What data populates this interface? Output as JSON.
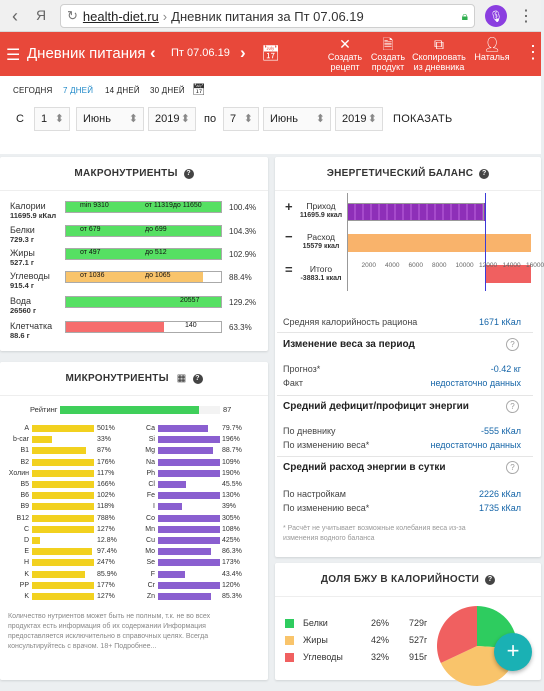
{
  "browser": {
    "back": "‹",
    "y": "Я",
    "domain": "health-diet.ru",
    "page_title": "Дневник питания за Пт 07.06.19"
  },
  "header": {
    "title": "Дневник питания",
    "date": "Пт 07.06.19",
    "actions": [
      {
        "label1": "Создать",
        "label2": "рецепт"
      },
      {
        "label1": "Создать",
        "label2": "продукт"
      },
      {
        "label1": "Скопировать",
        "label2": "из дневника"
      },
      {
        "label1": "Наталья",
        "label2": ""
      }
    ]
  },
  "filters": {
    "tabs": [
      "СЕГОДНЯ",
      "7 ДНЕЙ",
      "14 ДНЕЙ",
      "30 ДНЕЙ"
    ],
    "from_label": "С",
    "to_label": "по",
    "from_day": "1",
    "from_month": "Июнь",
    "from_year": "2019",
    "to_day": "7",
    "to_month": "Июнь",
    "to_year": "2019",
    "show_label": "ПОКАЗАТЬ"
  },
  "macro": {
    "title": "МАКРОНУТРИЕНТЫ",
    "rows": [
      {
        "name": "Калории",
        "amount": "11695.9 кКал",
        "pct": "100.4%",
        "t1": "min 9310",
        "t2": "от 11319до 11650",
        "fill": 1.0,
        "color": "#56e063"
      },
      {
        "name": "Белки",
        "amount": "729.3 г",
        "pct": "104.3%",
        "t1": "от 679",
        "t2": "до 699",
        "fill": 1.0,
        "color": "#56e063"
      },
      {
        "name": "Жиры",
        "amount": "527.1 г",
        "pct": "102.9%",
        "t1": "от 497",
        "t2": "до 512",
        "fill": 1.0,
        "color": "#56e063"
      },
      {
        "name": "Углеводы",
        "amount": "915.4 г",
        "pct": "88.4%",
        "t1": "от 1036",
        "t2": "до 1065",
        "fill": 0.88,
        "color": "#f9c46b"
      },
      {
        "name": "Вода",
        "amount": "26560 г",
        "pct": "129.2%",
        "t1": "",
        "t2": "20557",
        "fill": 1.0,
        "color": "#56e063"
      },
      {
        "name": "Клетчатка",
        "amount": "88.6 г",
        "pct": "63.3%",
        "t1": "",
        "t2": "140",
        "fill": 0.63,
        "color": "#f66d6d"
      }
    ]
  },
  "micro": {
    "title": "МИКРОНУТРИЕНТЫ",
    "rating_label": "Рейтинг",
    "rating_value": "87",
    "rating_fill": 0.87,
    "left": [
      {
        "n": "A",
        "v": "501%",
        "f": 1.0
      },
      {
        "n": "b-car",
        "v": "33%",
        "f": 0.33
      },
      {
        "n": "B1",
        "v": "87%",
        "f": 0.87
      },
      {
        "n": "B2",
        "v": "176%",
        "f": 1.0
      },
      {
        "n": "Холин",
        "v": "117%",
        "f": 1.0
      },
      {
        "n": "B5",
        "v": "166%",
        "f": 1.0
      },
      {
        "n": "B6",
        "v": "102%",
        "f": 1.0
      },
      {
        "n": "B9",
        "v": "118%",
        "f": 1.0
      },
      {
        "n": "B12",
        "v": "788%",
        "f": 1.0
      },
      {
        "n": "C",
        "v": "127%",
        "f": 1.0
      },
      {
        "n": "D",
        "v": "12.8%",
        "f": 0.13
      },
      {
        "n": "E",
        "v": "97.4%",
        "f": 0.97
      },
      {
        "n": "H",
        "v": "247%",
        "f": 1.0
      },
      {
        "n": "K",
        "v": "85.9%",
        "f": 0.86
      },
      {
        "n": "PP",
        "v": "177%",
        "f": 1.0
      },
      {
        "n": "K",
        "v": "127%",
        "f": 1.0
      }
    ],
    "right": [
      {
        "n": "Ca",
        "v": "79.7%",
        "f": 0.8
      },
      {
        "n": "Si",
        "v": "196%",
        "f": 1.0
      },
      {
        "n": "Mg",
        "v": "88.7%",
        "f": 0.89
      },
      {
        "n": "Na",
        "v": "109%",
        "f": 1.0
      },
      {
        "n": "Ph",
        "v": "190%",
        "f": 1.0
      },
      {
        "n": "Cl",
        "v": "45.5%",
        "f": 0.45
      },
      {
        "n": "Fe",
        "v": "130%",
        "f": 1.0
      },
      {
        "n": "I",
        "v": "39%",
        "f": 0.39
      },
      {
        "n": "Co",
        "v": "305%",
        "f": 1.0
      },
      {
        "n": "Mn",
        "v": "108%",
        "f": 1.0
      },
      {
        "n": "Cu",
        "v": "425%",
        "f": 1.0
      },
      {
        "n": "Mo",
        "v": "86.3%",
        "f": 0.86
      },
      {
        "n": "Se",
        "v": "173%",
        "f": 1.0
      },
      {
        "n": "F",
        "v": "43.4%",
        "f": 0.43
      },
      {
        "n": "Cr",
        "v": "120%",
        "f": 1.0
      },
      {
        "n": "Zn",
        "v": "85.3%",
        "f": 0.85
      }
    ],
    "note": "Количество нутриентов может быть не полным, т.к. не во всех продуктах есть информация об их содержании Информация предоставляется исключительно в справочных целях. Всегда консультируйтесь с врачом. 18+ Подробнее..."
  },
  "energy": {
    "title": "ЭНЕРГЕТИЧЕСКИЙ БАЛАНС",
    "income_label": "Приход",
    "income_value": "11695.9 ккал",
    "income_kcal": 11695.9,
    "outcome_label": "Расход",
    "outcome_value": "15579 ккал",
    "outcome_kcal": 15579,
    "total_label": "Итого",
    "total_value": "-3883.1 ккал",
    "total_kcal": -3883.1,
    "ticks": [
      "2000",
      "4000",
      "6000",
      "8000",
      "10000",
      "12000",
      "14000",
      "16000"
    ],
    "avg_label": "Средняя калорийность рациона",
    "avg_value": "1671 кКал",
    "weight_title": "Изменение веса за период",
    "forecast_label": "Прогноз*",
    "forecast_value": "-0.42 кг",
    "fact_label": "Факт",
    "fact_value": "недостаточно данных",
    "deficit_title": "Средний дефицит/профицит энергии",
    "by_diary_label": "По дневнику",
    "by_diary_value": "-555 кКал",
    "by_weight_label": "По изменению веса*",
    "by_weight_value": "недостаточно данных",
    "spend_title": "Средний расход энергии в сутки",
    "by_settings_label": "По настройкам",
    "by_settings_value": "2226 кКал",
    "by_weight2_label": "По изменению веса*",
    "by_weight2_value": "1735 кКал",
    "footnote": "* Расчёт не учитывает возможные колебания веса из-за изменения водного баланса"
  },
  "bju": {
    "title": "ДОЛЯ БЖУ В КАЛОРИЙНОСТИ",
    "rows": [
      {
        "name": "Белки",
        "pct": "26%",
        "g": "729г",
        "color": "#2ecc5f",
        "share": 26
      },
      {
        "name": "Жиры",
        "pct": "42%",
        "g": "527г",
        "color": "#f9c46b",
        "share": 42
      },
      {
        "name": "Углеводы",
        "pct": "32%",
        "g": "915г",
        "color": "#f06060",
        "share": 32
      }
    ]
  },
  "fab_label": "+"
}
